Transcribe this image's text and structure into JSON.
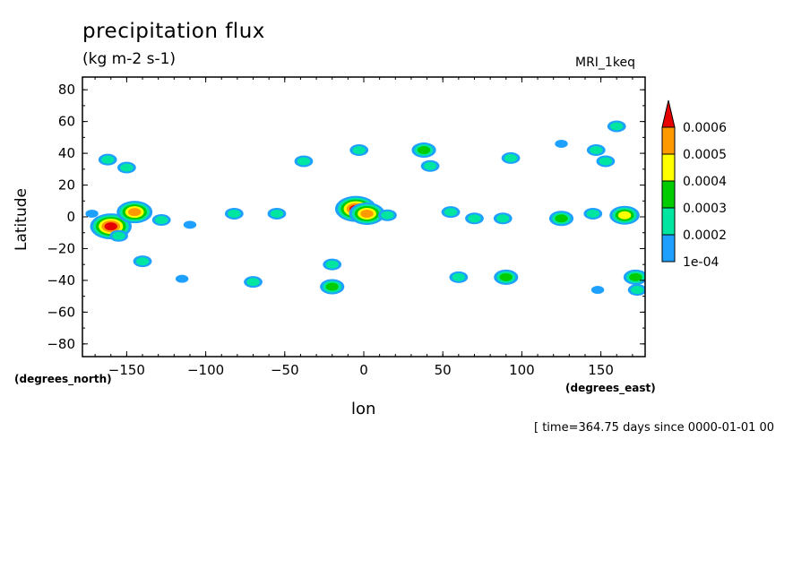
{
  "chart_data": {
    "type": "heatmap",
    "title": "precipitation flux",
    "subtitle": "(kg m-2 s-1)",
    "model_label": "MRI_1keq",
    "xlabel": "lon",
    "ylabel": "Latitude",
    "x_unit_label": "(degrees_east)",
    "y_unit_label": "(degrees_north)",
    "time_label": "[ time=364.75 days since 0000-01-01 00",
    "xlim": [
      -178,
      178
    ],
    "ylim": [
      -88,
      88
    ],
    "x_ticks": [
      -150,
      -100,
      -50,
      0,
      50,
      100,
      150
    ],
    "y_ticks": [
      -80,
      -60,
      -40,
      -20,
      0,
      20,
      40,
      60,
      80
    ],
    "colorbar": {
      "levels": [
        0.0001,
        0.0002,
        0.0003,
        0.0004,
        0.0005,
        0.0006
      ],
      "labels": [
        "1e-04",
        "0.0002",
        "0.0003",
        "0.0004",
        "0.0005",
        "0.0006"
      ],
      "colors": [
        "#1ea0ff",
        "#00e6a0",
        "#00cc00",
        "#ffff00",
        "#ff9900",
        "#e60000"
      ]
    },
    "blobs": [
      {
        "lon": -172,
        "lat": 2,
        "level": 1
      },
      {
        "lon": -160,
        "lat": -6,
        "level": 6
      },
      {
        "lon": -155,
        "lat": -12,
        "level": 2
      },
      {
        "lon": -145,
        "lat": 3,
        "level": 5
      },
      {
        "lon": -140,
        "lat": -28,
        "level": 2
      },
      {
        "lon": -150,
        "lat": 31,
        "level": 2
      },
      {
        "lon": -162,
        "lat": 36,
        "level": 2
      },
      {
        "lon": -128,
        "lat": -2,
        "level": 2
      },
      {
        "lon": -115,
        "lat": -39,
        "level": 1
      },
      {
        "lon": -110,
        "lat": -5,
        "level": 1
      },
      {
        "lon": -82,
        "lat": 2,
        "level": 2
      },
      {
        "lon": -70,
        "lat": -41,
        "level": 2
      },
      {
        "lon": -55,
        "lat": 2,
        "level": 2
      },
      {
        "lon": -38,
        "lat": 35,
        "level": 2
      },
      {
        "lon": -20,
        "lat": -30,
        "level": 2
      },
      {
        "lon": -20,
        "lat": -44,
        "level": 3
      },
      {
        "lon": -5,
        "lat": 5,
        "level": 6
      },
      {
        "lon": 2,
        "lat": 2,
        "level": 5
      },
      {
        "lon": 15,
        "lat": 1,
        "level": 2
      },
      {
        "lon": -3,
        "lat": 42,
        "level": 2
      },
      {
        "lon": 38,
        "lat": 42,
        "level": 3
      },
      {
        "lon": 42,
        "lat": 32,
        "level": 2
      },
      {
        "lon": 55,
        "lat": 3,
        "level": 2
      },
      {
        "lon": 60,
        "lat": -38,
        "level": 2
      },
      {
        "lon": 70,
        "lat": -1,
        "level": 2
      },
      {
        "lon": 88,
        "lat": -1,
        "level": 2
      },
      {
        "lon": 93,
        "lat": 37,
        "level": 2
      },
      {
        "lon": 90,
        "lat": -38,
        "level": 3
      },
      {
        "lon": 125,
        "lat": -1,
        "level": 3
      },
      {
        "lon": 145,
        "lat": 2,
        "level": 2
      },
      {
        "lon": 165,
        "lat": 1,
        "level": 4
      },
      {
        "lon": 147,
        "lat": 42,
        "level": 2
      },
      {
        "lon": 153,
        "lat": 35,
        "level": 2
      },
      {
        "lon": 172,
        "lat": -38,
        "level": 3
      },
      {
        "lon": 173,
        "lat": -46,
        "level": 2
      },
      {
        "lon": 160,
        "lat": 57,
        "level": 2
      },
      {
        "lon": 125,
        "lat": 46,
        "level": 1
      },
      {
        "lon": 148,
        "lat": -46,
        "level": 1
      }
    ]
  }
}
